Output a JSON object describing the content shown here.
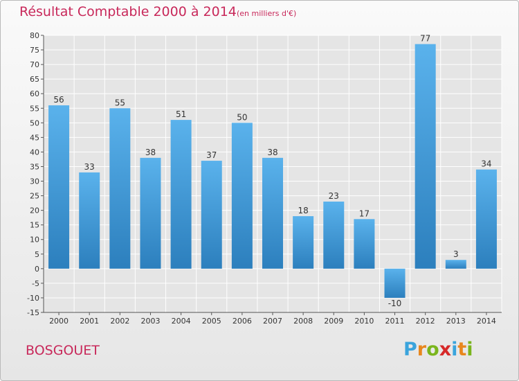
{
  "header": {
    "title": "Résultat Comptable 2000 à 2014",
    "subtitle": "(en milliers d'€)"
  },
  "footer": {
    "commune": "BOSGOUET",
    "brand": "Proxiti",
    "brand_colors": [
      "#3aa4dc",
      "#e8871e",
      "#7ab51d",
      "#d62828",
      "#3aa4dc",
      "#e8871e",
      "#7ab51d"
    ]
  },
  "colors": {
    "title": "#c8285a",
    "bar_light": "#5ab2ec",
    "bar_dark": "#2c7fbd",
    "plot_bg": "#e5e5e5",
    "grid": "#ffffff"
  },
  "chart_data": {
    "type": "bar",
    "title": "Résultat Comptable 2000 à 2014",
    "subtitle": "(en milliers d'€)",
    "categories": [
      "2000",
      "2001",
      "2002",
      "2003",
      "2004",
      "2005",
      "2006",
      "2007",
      "2008",
      "2009",
      "2010",
      "2011",
      "2012",
      "2013",
      "2014"
    ],
    "values": [
      56,
      33,
      55,
      38,
      51,
      37,
      50,
      38,
      18,
      23,
      17,
      -10,
      77,
      3,
      34
    ],
    "ylim": [
      -15,
      80
    ],
    "yticks": [
      80,
      75,
      70,
      65,
      60,
      55,
      50,
      45,
      40,
      35,
      30,
      25,
      20,
      15,
      10,
      5,
      0,
      -5,
      -10,
      -15
    ],
    "grid": true,
    "data_labels": true
  }
}
